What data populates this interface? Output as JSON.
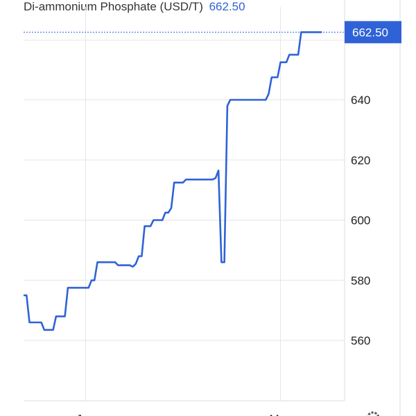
{
  "header": {
    "title": "Di-ammonium Phosphate (USD/T)",
    "current_value": "662.50"
  },
  "colors": {
    "line": "#2f62d6",
    "badge": "#2f62d6",
    "grid": "#e6e6e6"
  },
  "chart_data": {
    "type": "line",
    "title": "Di-ammonium Phosphate (USD/T)",
    "xlabel": "",
    "ylabel": "",
    "ylim": [
      538,
      669
    ],
    "y_ticks": [
      560,
      580,
      600,
      620,
      640
    ],
    "y_tick_labels": [
      "560",
      "580",
      "600",
      "620",
      "640"
    ],
    "x_range": [
      0,
      108
    ],
    "x_ticks": [
      {
        "label": "Jan",
        "x": 21
      },
      {
        "label": "May",
        "x": 87
      }
    ],
    "last_value_label": "662.50",
    "last_value": 662.5,
    "series": [
      {
        "name": "",
        "x": [
          0,
          1,
          2,
          3,
          4,
          5,
          6,
          7,
          8,
          9,
          10,
          11,
          12,
          13,
          14,
          15,
          16,
          17,
          18,
          19,
          20,
          21,
          22,
          23,
          24,
          25,
          26,
          27,
          28,
          29,
          30,
          31,
          32,
          33,
          34,
          35,
          36,
          37,
          38,
          39,
          40,
          41,
          42,
          43,
          44,
          45,
          46,
          47,
          48,
          49,
          50,
          51,
          52,
          53,
          54,
          55,
          56,
          57,
          58,
          59,
          60,
          61,
          62,
          63,
          64,
          65,
          66,
          67,
          68,
          69,
          70,
          71,
          72,
          73,
          74,
          75,
          76,
          77,
          78,
          79,
          80,
          81,
          82,
          83,
          84,
          85,
          86,
          87,
          88,
          89,
          90,
          91,
          92,
          93,
          94,
          95,
          96,
          97,
          98,
          99,
          100,
          101
        ],
        "values": [
          575,
          575,
          566,
          566,
          566,
          566,
          566,
          563.5,
          563.5,
          563.5,
          563.5,
          568,
          568,
          568,
          568,
          577.5,
          577.5,
          577.5,
          577.5,
          577.5,
          577.5,
          577.5,
          577.5,
          580,
          580,
          586,
          586,
          586,
          586,
          586,
          586,
          586,
          585,
          585,
          585,
          585,
          585,
          584.5,
          585.5,
          588,
          588,
          598,
          598,
          598,
          600,
          600,
          600,
          600,
          602.5,
          602.5,
          604,
          612.5,
          612.5,
          612.5,
          612.5,
          613.5,
          613.5,
          613.5,
          613.5,
          613.5,
          613.5,
          613.5,
          613.5,
          613.5,
          613.5,
          614,
          616.5,
          586,
          586,
          638,
          640,
          640,
          640,
          640,
          640,
          640,
          640,
          640,
          640,
          640,
          640,
          640,
          640,
          642,
          647.5,
          647.5,
          647.5,
          652.5,
          652.5,
          652.5,
          655,
          655,
          655,
          655,
          662.5,
          662.5,
          662.5,
          662.5,
          662.5,
          662.5,
          662.5,
          662.5
        ]
      }
    ],
    "grid": true,
    "legend": "none"
  }
}
